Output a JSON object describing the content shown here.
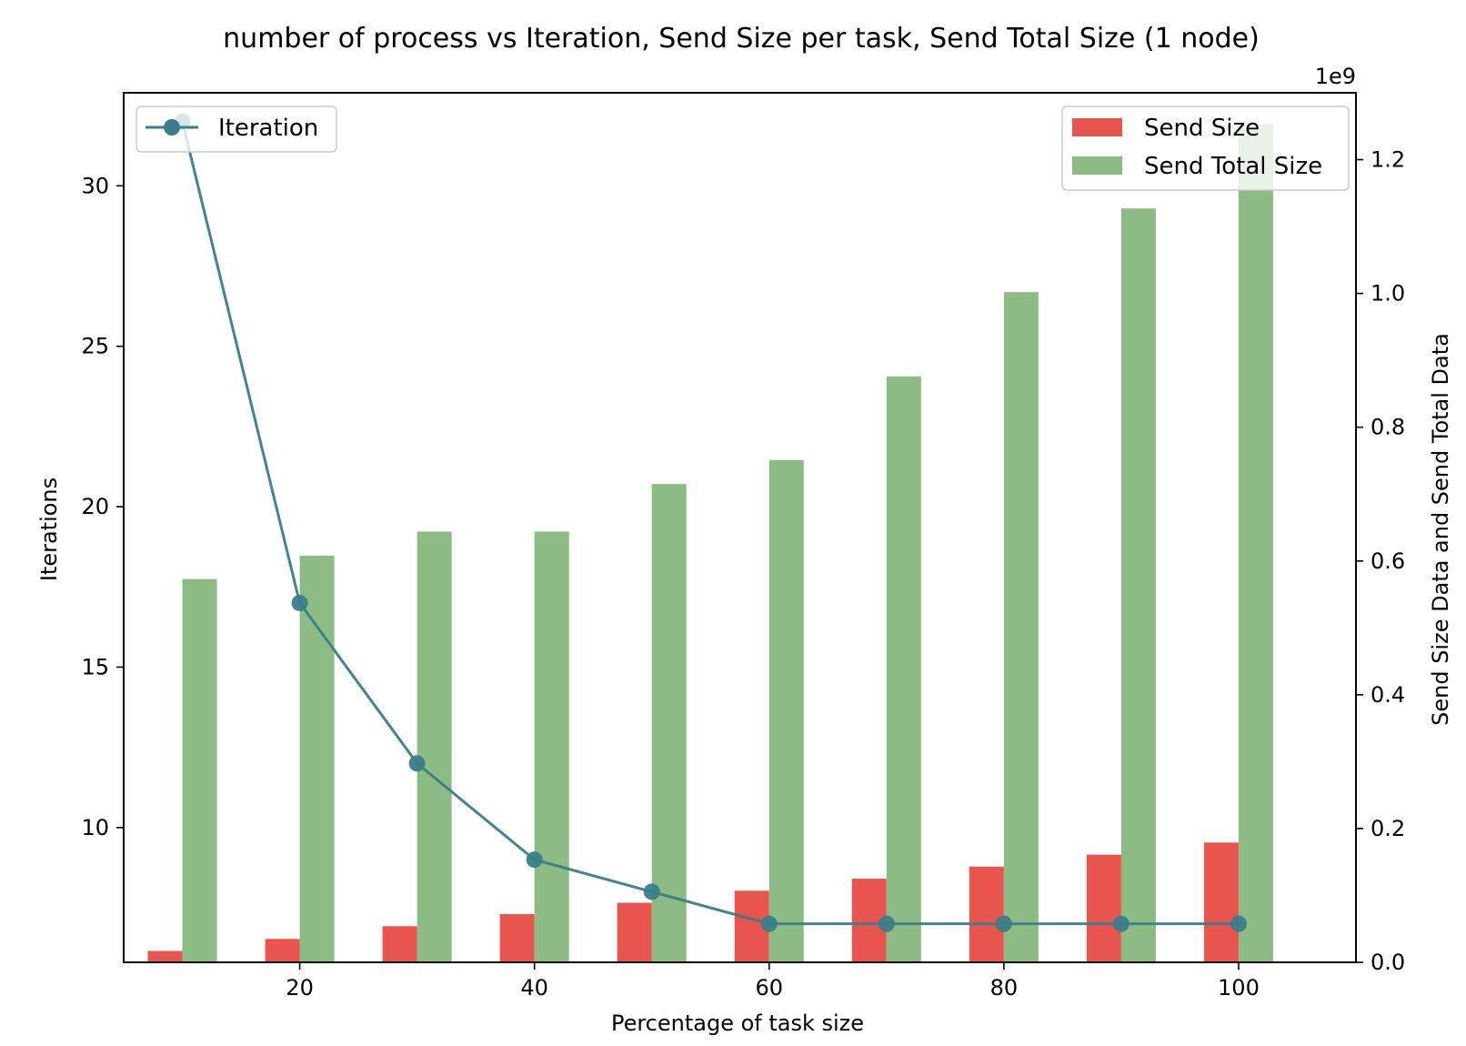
{
  "chart_data": {
    "type": "bar",
    "title": "number of process vs Iteration, Send Size per task, Send Total Size (1 node)",
    "xlabel": "Percentage of task size",
    "ylabel": "Iterations",
    "ylabel_right": "Send Size Data and Send Total Data",
    "right_axis_offset": "1e9",
    "x": [
      10,
      20,
      30,
      40,
      50,
      60,
      70,
      80,
      90,
      100
    ],
    "xlim": [
      5,
      110
    ],
    "x_ticks": [
      20,
      40,
      60,
      80,
      100
    ],
    "ylim": [
      5.8,
      32.9
    ],
    "y_ticks": [
      10,
      15,
      20,
      25,
      30
    ],
    "ylim_right": [
      0,
      1.3
    ],
    "y_ticks_right": [
      0.0,
      0.2,
      0.4,
      0.6,
      0.8,
      1.0,
      1.2
    ],
    "series": [
      {
        "name": "Iteration",
        "type": "line",
        "axis": "left",
        "color": "#3a7d89",
        "values": [
          32,
          17,
          12,
          9,
          8,
          7,
          7,
          7,
          7,
          7
        ]
      },
      {
        "name": "Send Size",
        "type": "bar",
        "axis": "right",
        "color": "#e8554e",
        "values": [
          0.017,
          0.035,
          0.054,
          0.072,
          0.089,
          0.107,
          0.125,
          0.143,
          0.161,
          0.179
        ]
      },
      {
        "name": "Send Total Size",
        "type": "bar",
        "axis": "right",
        "color": "#8cbc84",
        "values": [
          0.573,
          0.608,
          0.644,
          0.644,
          0.715,
          0.751,
          0.876,
          1.002,
          1.127,
          1.253
        ]
      }
    ],
    "legends": {
      "left": {
        "placement": "top-left",
        "entries": [
          "Iteration"
        ]
      },
      "right": {
        "placement": "top-right",
        "entries": [
          "Send Size",
          "Send Total Size"
        ]
      }
    },
    "grid": false
  }
}
